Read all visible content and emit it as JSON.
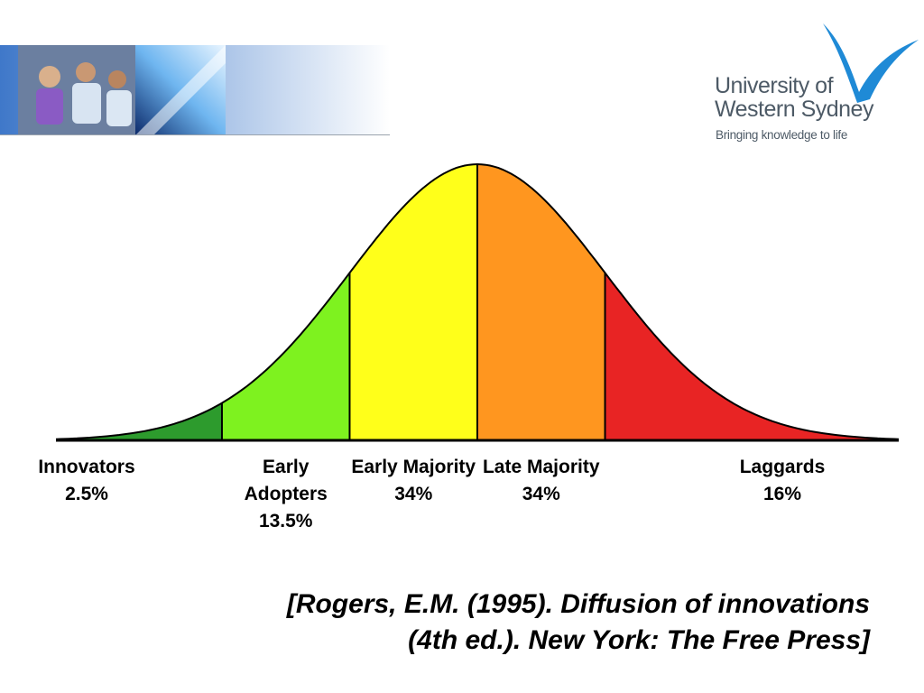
{
  "branding": {
    "university_name": "University of\nWestern Sydney",
    "tagline": "Bringing knowledge to life",
    "brand_color": "#1f8ad6",
    "banner_image": "students-and-abstract-light-photo-banner"
  },
  "chart_data": {
    "type": "area",
    "title": "",
    "xlabel": "",
    "ylabel": "",
    "grid": false,
    "legend": "none",
    "distribution": "normal",
    "categories": [
      {
        "label_lines": [
          "Innovators",
          "2.5%"
        ],
        "name": "Innovators",
        "value": 2.5,
        "color": "#2d9b2d"
      },
      {
        "label_lines": [
          "Early",
          "Adopters",
          "13.5%"
        ],
        "name": "Early Adopters",
        "value": 13.5,
        "color": "#7ef21f"
      },
      {
        "label_lines": [
          "Early Majority",
          "34%"
        ],
        "name": "Early Majority",
        "value": 34,
        "color": "#ffff1a"
      },
      {
        "label_lines": [
          "Late Majority",
          "34%"
        ],
        "name": "Late Majority",
        "value": 34,
        "color": "#ff961f"
      },
      {
        "label_lines": [
          "Laggards",
          "16%"
        ],
        "name": "Laggards",
        "value": 16,
        "color": "#e82424"
      }
    ],
    "boundaries_sd": [
      -2,
      -1,
      0,
      1
    ],
    "x_range_sd": [
      -3.3,
      3.3
    ]
  },
  "citation": {
    "lines": [
      "[Rogers, E.M. (1995). Diffusion of innovations",
      "(4th ed.). New York: The Free Press]"
    ]
  }
}
